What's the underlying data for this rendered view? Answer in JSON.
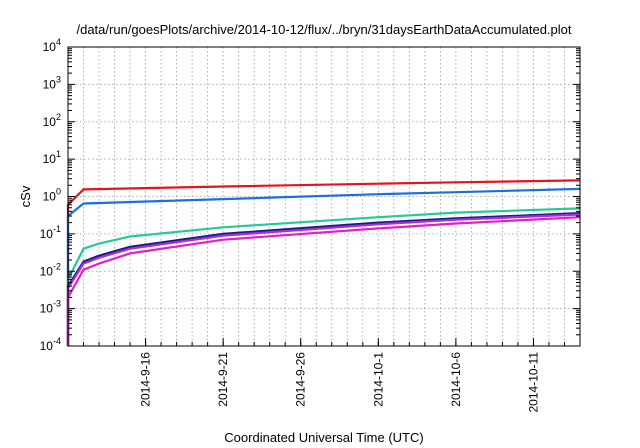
{
  "chart_data": {
    "type": "line",
    "title": "/data/run/goesPlots/archive/2014-10-12/flux/../bryn/31daysEarthDataAccumulated.plot",
    "xlabel": "Coordinated Universal Time (UTC)",
    "ylabel": "cSv",
    "x_axis": "date",
    "xlim": [
      "2014-09-11",
      "2014-10-14"
    ],
    "x_tick_labels": [
      "2014-9-16",
      "2014-9-21",
      "2014-9-26",
      "2014-10-1",
      "2014-10-6",
      "2014-10-11"
    ],
    "x_ticks": [
      "2014-09-16",
      "2014-09-21",
      "2014-09-26",
      "2014-10-01",
      "2014-10-06",
      "2014-10-11"
    ],
    "y_scale": "log",
    "ylim": [
      0.0001,
      10000
    ],
    "y_ticks": [
      {
        "mantissa": "10",
        "exponent": "-4",
        "value": 0.0001
      },
      {
        "mantissa": "10",
        "exponent": "-3",
        "value": 0.001
      },
      {
        "mantissa": "10",
        "exponent": "-2",
        "value": 0.01
      },
      {
        "mantissa": "10",
        "exponent": "-1",
        "value": 0.1
      },
      {
        "mantissa": "10",
        "exponent": "0",
        "value": 1
      },
      {
        "mantissa": "10",
        "exponent": "1",
        "value": 10
      },
      {
        "mantissa": "10",
        "exponent": "2",
        "value": 100
      },
      {
        "mantissa": "10",
        "exponent": "3",
        "value": 1000
      },
      {
        "mantissa": "10",
        "exponent": "4",
        "value": 10000
      }
    ],
    "grid": true,
    "legend": "none",
    "series": [
      {
        "color": "#e6131a",
        "x": [
          "2014-09-11",
          "2014-09-11",
          "2014-09-11",
          "2014-09-12",
          "2014-09-21",
          "2014-10-01",
          "2014-10-06",
          "2014-10-14"
        ],
        "y": [
          0.0001,
          0.1,
          0.6,
          1.55,
          1.85,
          2.2,
          2.4,
          2.7
        ]
      },
      {
        "color": "#1a6fdf",
        "x": [
          "2014-09-11",
          "2014-09-11",
          "2014-09-11",
          "2014-09-12",
          "2014-09-21",
          "2014-10-01",
          "2014-10-06",
          "2014-10-14"
        ],
        "y": [
          0.0001,
          0.05,
          0.3,
          0.65,
          0.85,
          1.15,
          1.3,
          1.6
        ]
      },
      {
        "color": "#25c99a",
        "x": [
          "2014-09-11",
          "2014-09-11",
          "2014-09-12",
          "2014-09-13",
          "2014-09-15",
          "2014-09-21",
          "2014-10-01",
          "2014-10-06",
          "2014-10-14"
        ],
        "y": [
          0.0001,
          0.006,
          0.04,
          0.055,
          0.085,
          0.15,
          0.28,
          0.37,
          0.48
        ]
      },
      {
        "color": "#1c1c7a",
        "x": [
          "2014-09-11",
          "2014-09-11",
          "2014-09-12",
          "2014-09-13",
          "2014-09-15",
          "2014-09-21",
          "2014-10-01",
          "2014-10-06",
          "2014-10-14"
        ],
        "y": [
          0.0001,
          0.004,
          0.018,
          0.026,
          0.045,
          0.1,
          0.2,
          0.26,
          0.36
        ]
      },
      {
        "color": "#a52ee0",
        "x": [
          "2014-09-11",
          "2014-09-11",
          "2014-09-12",
          "2014-09-13",
          "2014-09-15",
          "2014-09-21",
          "2014-10-01",
          "2014-10-06",
          "2014-10-14"
        ],
        "y": [
          0.0001,
          0.0035,
          0.016,
          0.023,
          0.04,
          0.09,
          0.18,
          0.24,
          0.33
        ]
      },
      {
        "color": "#e61fbf",
        "x": [
          "2014-09-11",
          "2014-09-11",
          "2014-09-12",
          "2014-09-13",
          "2014-09-15",
          "2014-09-21",
          "2014-10-01",
          "2014-10-06",
          "2014-10-14"
        ],
        "y": [
          0.0001,
          0.002,
          0.011,
          0.016,
          0.03,
          0.07,
          0.14,
          0.19,
          0.28
        ]
      }
    ]
  }
}
